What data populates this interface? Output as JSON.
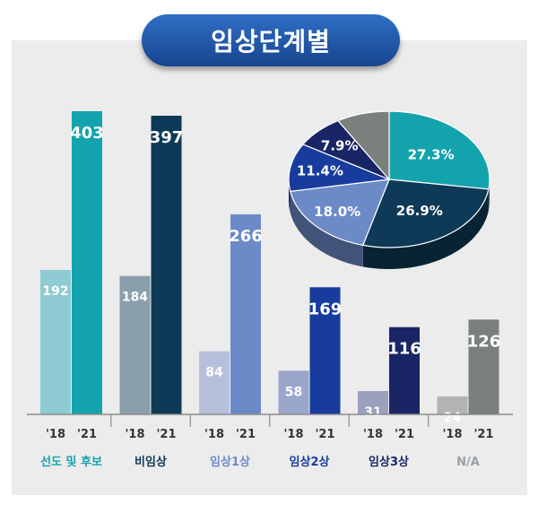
{
  "chart_data": {
    "type": "bar",
    "title": "임상단계별",
    "categories": [
      "선도 및 후보",
      "비임상",
      "임상1상",
      "임상2상",
      "임상3상",
      "N/A"
    ],
    "year_labels": [
      "'18",
      "'21"
    ],
    "series": [
      {
        "name": "'18",
        "values": [
          192,
          184,
          84,
          58,
          31,
          24
        ]
      },
      {
        "name": "'21",
        "values": [
          403,
          397,
          266,
          169,
          116,
          126
        ]
      }
    ],
    "colors": {
      "bar_18": [
        "#8fcbd2",
        "#8a9fac",
        "#b7c0db",
        "#9aa6cc",
        "#9aa0bd",
        "#b3b3b3"
      ],
      "bar_21": [
        "#13a3ad",
        "#0e3a57",
        "#6c8ac8",
        "#183c9e",
        "#1a2566",
        "#7a807c"
      ],
      "category_text": [
        "#13a3ad",
        "#0e3a57",
        "#6c8ac8",
        "#183c9e",
        "#1a2566",
        "#9aa0a6"
      ]
    },
    "ylim": [
      0,
      403
    ],
    "pie": {
      "type": "pie",
      "slices": [
        {
          "label": "27.3%",
          "value": 27.3,
          "color": "#13a3ad"
        },
        {
          "label": "26.9%",
          "value": 26.9,
          "color": "#0e3a57"
        },
        {
          "label": "18.0%",
          "value": 18.0,
          "color": "#6c8ac8"
        },
        {
          "label": "11.4%",
          "value": 11.4,
          "color": "#183c9e"
        },
        {
          "label": "7.9%",
          "value": 7.9,
          "color": "#1a2566"
        },
        {
          "label": "",
          "value": 8.5,
          "color": "#7a807c"
        }
      ]
    }
  }
}
